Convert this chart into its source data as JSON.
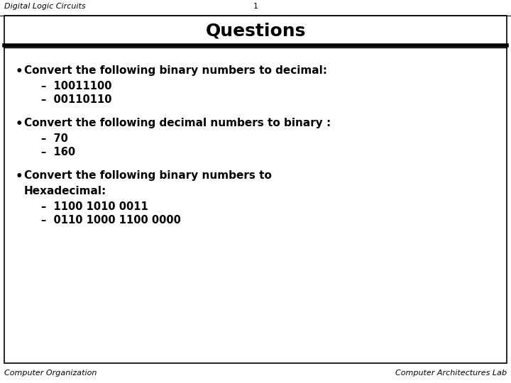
{
  "header_left": "Digital Logic Circuits",
  "header_center": "1",
  "title": "Questions",
  "footer_left": "Computer Organization",
  "footer_right": "Computer Architectures Lab",
  "bg_color": "#ffffff",
  "content": [
    {
      "text": "Convert the following binary numbers to decimal:",
      "sub": [
        "–  10011100",
        "–  00110110"
      ]
    },
    {
      "text": "Convert the following decimal numbers to binary :",
      "sub": [
        "–  70",
        "–  160"
      ]
    },
    {
      "text": "Convert the following binary numbers to\nHexadecimal:",
      "sub": [
        "–  1100 1010 0011",
        "–  0110 1000 1100 0000"
      ]
    }
  ],
  "header_fontsize": 8,
  "title_fontsize": 18,
  "bullet_fontsize": 11,
  "sub_fontsize": 10.5,
  "footer_fontsize": 8
}
